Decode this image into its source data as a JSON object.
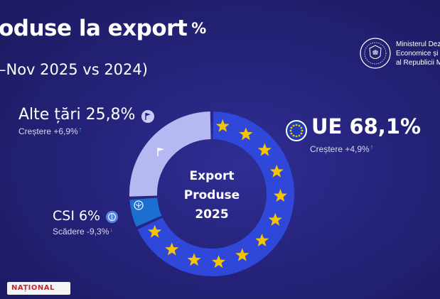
{
  "header": {
    "title": "oduse la export",
    "title_unit": "%",
    "subtitle": "–Nov 2025 vs 2024)"
  },
  "ministry": {
    "lines": [
      "Ministerul Dez",
      "Economice și",
      "al Republicii M"
    ]
  },
  "chart_data": {
    "type": "pie",
    "title": "Export Produse 2025",
    "center_label": [
      "Export",
      "Produse",
      "2025"
    ],
    "slices": [
      {
        "label": "UE",
        "value": 68.1,
        "display": "UE 68,1%",
        "change": "Creștere +4,9%",
        "trend": "up",
        "color": "#2f48d9"
      },
      {
        "label": "CSI",
        "value": 6.0,
        "display": "CSI 6%",
        "change": "Scădere -9,3%",
        "trend": "down",
        "color": "#1c6fd0"
      },
      {
        "label": "Alte țări",
        "value": 25.8,
        "display": "Alte țări 25,8%",
        "change": "Creștere +6,9%",
        "trend": "up",
        "color": "#b6b8f2"
      }
    ],
    "legend_placement": "labels beside slices"
  },
  "watermark": {
    "text": "NAȚIONAL"
  },
  "colors": {
    "background": "#25237a",
    "star": "#f5c400",
    "up": "#3fe0b0",
    "down": "#ff6b6b"
  }
}
